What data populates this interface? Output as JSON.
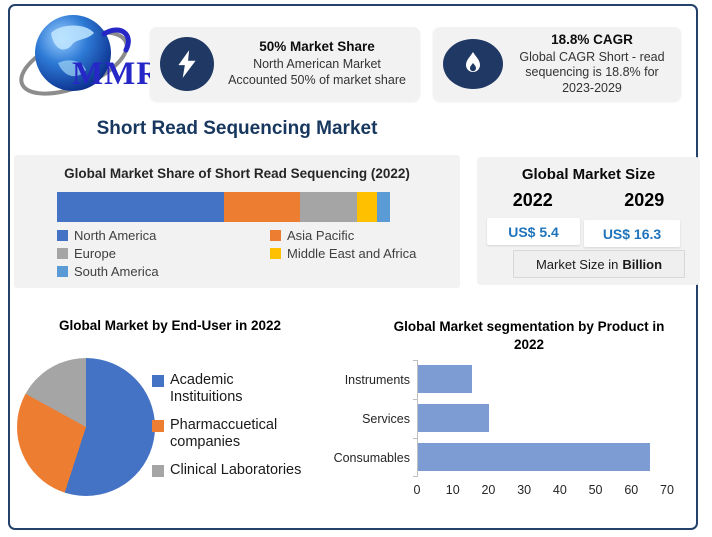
{
  "brand": {
    "name": "MMR"
  },
  "colors": {
    "accent_navy": "#1F3864",
    "title_navy": "#17375E",
    "value_blue": "#2074BC",
    "hbar_blue": "#7E9CD4"
  },
  "stat_cards": [
    {
      "icon": "lightning-icon",
      "title": "50% Market Share",
      "body": "North American Market Accounted 50% of market share"
    },
    {
      "icon": "flame-icon",
      "title": "18.8% CAGR",
      "body": "Global CAGR Short - read sequencing is 18.8% for 2023-2029"
    }
  ],
  "page_title": "Short Read Sequencing Market",
  "market_size": {
    "title": "Global Market Size",
    "years": [
      "2022",
      "2029"
    ],
    "values": [
      "US$ 5.4",
      "US$ 16.3"
    ],
    "note_prefix": "Market Size in",
    "note_bold": "Billion"
  },
  "chart_data": [
    {
      "type": "bar",
      "variant": "stacked-horizontal",
      "title": "Global Market Share of Short Read Sequencing (2022)",
      "series": [
        {
          "name": "North America",
          "value": 50,
          "color": "#4472C4"
        },
        {
          "name": "Asia Pacific",
          "value": 23,
          "color": "#ED7D31"
        },
        {
          "name": "Europe",
          "value": 17,
          "color": "#A5A5A5"
        },
        {
          "name": "Middle East and Africa",
          "value": 6,
          "color": "#FFC000"
        },
        {
          "name": "South America",
          "value": 4,
          "color": "#5B9BD5"
        }
      ],
      "legend_position": "bottom-two-columns",
      "xlim": [
        0,
        100
      ]
    },
    {
      "type": "pie",
      "title": "Global Market by End-User in 2022",
      "labels": [
        "Academic Instituitions",
        "Pharmaccuetical companies",
        "Clinical Laboratories"
      ],
      "values": [
        55,
        28,
        17
      ],
      "colors": [
        "#4472C4",
        "#ED7D31",
        "#A5A5A5"
      ],
      "legend_position": "right"
    },
    {
      "type": "bar",
      "title": "Global Market segmentation by Product in 2022",
      "categories": [
        "Instruments",
        "Services",
        "Consumables"
      ],
      "values": [
        15,
        20,
        65
      ],
      "bar_color": "#7E9CD4",
      "xlim": [
        0,
        70
      ],
      "xticks": [
        0,
        10,
        20,
        30,
        40,
        50,
        60,
        70
      ],
      "grid": false
    }
  ]
}
